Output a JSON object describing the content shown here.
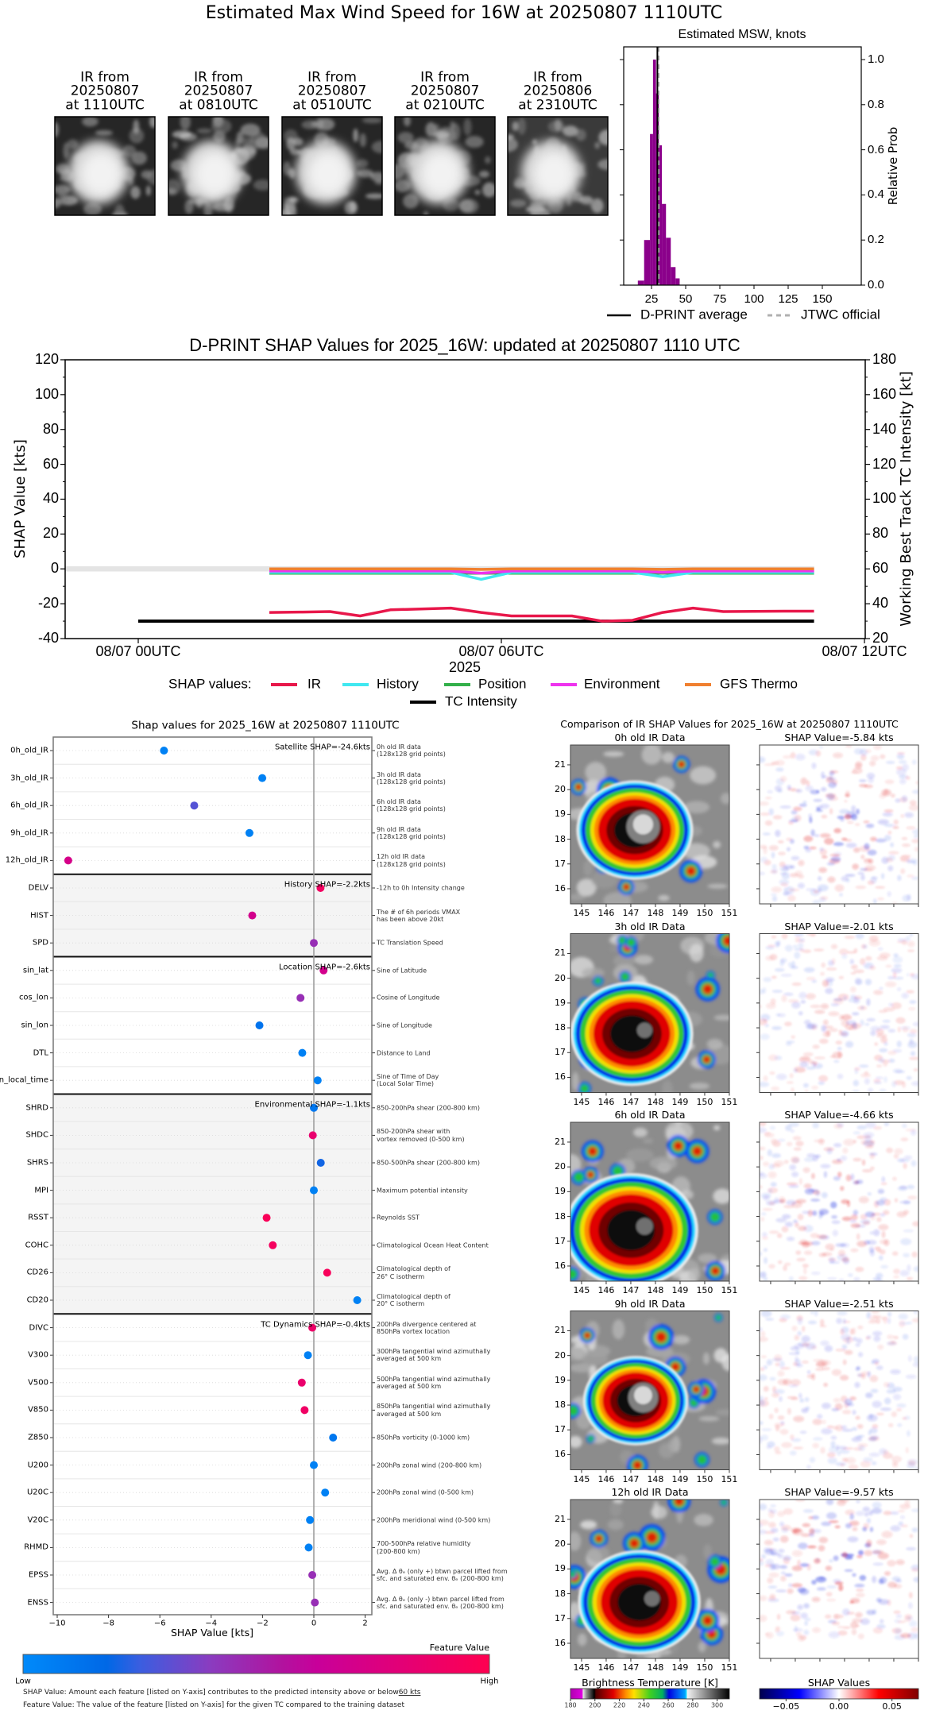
{
  "title": "Estimated Max Wind Speed for 16W at 20250807 1110UTC",
  "thumbnails": [
    {
      "line1": "IR from",
      "line2": "20250807",
      "line3": "at 1110UTC"
    },
    {
      "line1": "IR from",
      "line2": "20250807",
      "line3": "at 0810UTC"
    },
    {
      "line1": "IR from",
      "line2": "20250807",
      "line3": "at 0510UTC"
    },
    {
      "line1": "IR from",
      "line2": "20250807",
      "line3": "at 0210UTC"
    },
    {
      "line1": "IR from",
      "line2": "20250806",
      "line3": "at 2310UTC"
    }
  ],
  "chart_data": [
    {
      "type": "bar",
      "title": "Estimated MSW, knots",
      "xlabel": "",
      "ylabel": "Relative Prob",
      "xlim": [
        5,
        178
      ],
      "ylim": [
        0,
        1.05
      ],
      "xtick_labels": [
        "25",
        "50",
        "75",
        "100",
        "125",
        "150"
      ],
      "ytick_labels": [
        "0.0",
        "0.2",
        "0.4",
        "0.6",
        "0.8",
        "1.0"
      ],
      "bar_color": "#8b008b",
      "bins": [
        {
          "from": 15,
          "to": 19.6,
          "value": 0.02
        },
        {
          "from": 19.6,
          "to": 23.9,
          "value": 0.2
        },
        {
          "from": 23.9,
          "to": 26.1,
          "value": 0.67
        },
        {
          "from": 26.1,
          "to": 28.3,
          "value": 1.0
        },
        {
          "from": 28.3,
          "to": 30.4,
          "value": 0.85
        },
        {
          "from": 30.4,
          "to": 32.6,
          "value": 0.62
        },
        {
          "from": 32.6,
          "to": 35.6,
          "value": 0.36
        },
        {
          "from": 35.6,
          "to": 39.1,
          "value": 0.21
        },
        {
          "from": 39.1,
          "to": 42.6,
          "value": 0.08
        },
        {
          "from": 42.6,
          "to": 45.6,
          "value": 0.03
        }
      ],
      "dprint_average": 29.3,
      "jtwc_official": 30,
      "legend": {
        "dprint": "D-PRINT average",
        "jtwc": "JTWC official"
      },
      "legend_placement": "bottom"
    },
    {
      "type": "line",
      "title": "D-PRINT SHAP Values for 2025_16W: updated at 20250807 1110 UTC",
      "xlabel": "2025",
      "ylabel": "SHAP Value [kts]",
      "y2label": "Working Best Track TC Intensity [kt]",
      "ylim": [
        -40,
        120
      ],
      "y2lim": [
        20,
        180
      ],
      "ytick_labels": [
        "-40",
        "-20",
        "0",
        "20",
        "40",
        "60",
        "80",
        "100",
        "120"
      ],
      "y2tick_labels": [
        "20",
        "40",
        "60",
        "80",
        "100",
        "120",
        "140",
        "160",
        "180"
      ],
      "xlim": [
        "2025-08-06 22:48",
        "2025-08-07 12:00"
      ],
      "xticks": [
        {
          "label": "08/07 00UTC",
          "time": "2025-08-07 00:00"
        },
        {
          "label": "08/07 06UTC",
          "time": "2025-08-07 06:00"
        },
        {
          "label": "08/07 12UTC",
          "time": "2025-08-07 12:00"
        }
      ],
      "x": [
        "2025-08-07 02:10",
        "2025-08-07 02:40",
        "2025-08-07 03:10",
        "2025-08-07 03:40",
        "2025-08-07 04:10",
        "2025-08-07 04:40",
        "2025-08-07 05:10",
        "2025-08-07 05:40",
        "2025-08-07 06:10",
        "2025-08-07 06:40",
        "2025-08-07 07:10",
        "2025-08-07 07:40",
        "2025-08-07 08:10",
        "2025-08-07 08:40",
        "2025-08-07 09:10",
        "2025-08-07 09:40",
        "2025-08-07 10:10",
        "2025-08-07 10:40",
        "2025-08-07 11:10"
      ],
      "legend_title": "SHAP values:",
      "series": [
        {
          "name": "IR",
          "color": "#e8174a",
          "values": [
            -25,
            -24.8,
            -24.5,
            -27,
            -23.5,
            -23,
            -22.5,
            -25,
            -27,
            -27,
            -27,
            -30,
            -29.5,
            -25,
            -22.5,
            -24.5,
            -24.4,
            -24.3,
            -24.3
          ]
        },
        {
          "name": "History",
          "color": "#40e8f0",
          "values": [
            -2,
            -2,
            -2,
            -2,
            -2,
            -2,
            -2,
            -6,
            -2,
            -2,
            -2,
            -2,
            -2,
            -4.5,
            -2,
            -2,
            -2,
            -2,
            -2
          ]
        },
        {
          "name": "Position",
          "color": "#33b04a",
          "values": [
            -2.5,
            -2.5,
            -2.5,
            -2.5,
            -2.5,
            -2.5,
            -2.5,
            -2.5,
            -2.5,
            -2.5,
            -2.5,
            -2.5,
            -2.5,
            -2.5,
            -2.5,
            -2.5,
            -2.5,
            -2.5,
            -2.5
          ]
        },
        {
          "name": "Environment",
          "color": "#ee33ee",
          "values": [
            -1.2,
            -1.2,
            -1.2,
            -1.2,
            -1.2,
            -1.2,
            -1.2,
            -2.5,
            -1.2,
            -1.2,
            -1.2,
            -1.2,
            -1.2,
            -2,
            -1.2,
            -1.2,
            -1.2,
            -1.2,
            -1.2
          ]
        },
        {
          "name": "GFS Thermo",
          "color": "#f08030",
          "values": [
            0,
            0,
            0,
            0,
            0,
            0,
            0,
            -0.3,
            0,
            0,
            0,
            0,
            0,
            -0.3,
            0,
            0,
            0,
            0,
            0
          ]
        }
      ],
      "tc_intensity": {
        "name": "TC Intensity",
        "color": "#000000",
        "x": [
          "2025-08-07 00:00",
          "2025-08-07 11:10"
        ],
        "values_kt": [
          30,
          30
        ]
      }
    },
    {
      "type": "scatter",
      "title": "Shap values for 2025_16W at 20250807 1110UTC",
      "xlabel": "SHAP Value [kts]",
      "xlim": [
        -10.2,
        2.25
      ],
      "xtick_labels": [
        "−10",
        "−8",
        "−6",
        "−4",
        "−2",
        "0",
        "2"
      ],
      "groups": [
        {
          "label": "Satellite SHAP=-24.6kts",
          "shaded": false,
          "features": [
            {
              "name": "0h_old_IR",
              "desc": "0h old IR data\n(128x128 grid points)",
              "shap": -5.84,
              "feature_value": 0.05
            },
            {
              "name": "3h_old_IR",
              "desc": "3h old IR data\n(128x128 grid points)",
              "shap": -2.01,
              "feature_value": 0.05
            },
            {
              "name": "6h_old_IR",
              "desc": "6h old IR data\n(128x128 grid points)",
              "shap": -4.66,
              "feature_value": 0.3
            },
            {
              "name": "9h_old_IR",
              "desc": "9h old IR data\n(128x128 grid points)",
              "shap": -2.51,
              "feature_value": 0.05
            },
            {
              "name": "12h_old_IR",
              "desc": "12h old IR data\n(128x128 grid points)",
              "shap": -9.57,
              "feature_value": 0.72
            }
          ]
        },
        {
          "label": "History SHAP=-2.2kts",
          "shaded": true,
          "features": [
            {
              "name": "DELV",
              "desc": "-12h to 0h Intensity change",
              "shap": 0.26,
              "feature_value": 0.92
            },
            {
              "name": "HIST",
              "desc": "The # of 6h periods VMAX\nhas been above 20kt",
              "shap": -2.4,
              "feature_value": 0.7
            },
            {
              "name": "SPD",
              "desc": "TC Translation Speed",
              "shap": 0.0,
              "feature_value": 0.45
            }
          ]
        },
        {
          "label": "Location SHAP=-2.6kts",
          "shaded": false,
          "features": [
            {
              "name": "sin_lat",
              "desc": "Sine of Latitude",
              "shap": 0.38,
              "feature_value": 0.7
            },
            {
              "name": "cos_lon",
              "desc": "Cosine of Longitude",
              "shap": -0.52,
              "feature_value": 0.45
            },
            {
              "name": "sin_lon",
              "desc": "Sine of Longitude",
              "shap": -2.12,
              "feature_value": 0.12
            },
            {
              "name": "DTL",
              "desc": "Distance to Land",
              "shap": -0.45,
              "feature_value": 0.05
            },
            {
              "name": "sin_local_time",
              "desc": "Sine of Time of Day\n(Local Solar Time)",
              "shap": 0.15,
              "feature_value": 0.05
            }
          ]
        },
        {
          "label": "Environmental SHAP=-1.1kts",
          "shaded": true,
          "features": [
            {
              "name": "SHRD",
              "desc": "850-200hPa shear (200-800 km)",
              "shap": 0.0,
              "feature_value": 0.1
            },
            {
              "name": "SHDC",
              "desc": "850-200hPa shear with\nvortex removed (0-500 km)",
              "shap": -0.04,
              "feature_value": 0.85
            },
            {
              "name": "SHRS",
              "desc": "850-500hPa shear (200-800 km)",
              "shap": 0.27,
              "feature_value": 0.2
            },
            {
              "name": "MPI",
              "desc": "Maximum potential intensity",
              "shap": 0.0,
              "feature_value": 0.05
            },
            {
              "name": "RSST",
              "desc": "Reynolds SST",
              "shap": -1.84,
              "feature_value": 0.96
            },
            {
              "name": "COHC",
              "desc": "Climatological Ocean Heat Content",
              "shap": -1.6,
              "feature_value": 0.93
            },
            {
              "name": "CD26",
              "desc": "Climatological depth of\n26° C isotherm",
              "shap": 0.52,
              "feature_value": 0.95
            },
            {
              "name": "CD20",
              "desc": "Climatological depth of\n20° C isotherm",
              "shap": 1.69,
              "feature_value": 0.05
            }
          ]
        },
        {
          "label": "TC Dynamics SHAP=-0.4kts",
          "shaded": false,
          "features": [
            {
              "name": "DIVC",
              "desc": "200hPa divergence centered at\n850hPa vortex location",
              "shap": -0.06,
              "feature_value": 0.88
            },
            {
              "name": "V300",
              "desc": "300hPa tangential wind azimuthally\naveraged at 500 km",
              "shap": -0.23,
              "feature_value": 0.05
            },
            {
              "name": "V500",
              "desc": "500hPa tangential wind azimuthally\naveraged at 500 km",
              "shap": -0.47,
              "feature_value": 0.86
            },
            {
              "name": "V850",
              "desc": "850hPa tangential wind azimuthally\naveraged at 500 km",
              "shap": -0.36,
              "feature_value": 0.9
            },
            {
              "name": "Z850",
              "desc": "850hPa vorticity (0-1000 km)",
              "shap": 0.75,
              "feature_value": 0.1
            },
            {
              "name": "U200",
              "desc": "200hPa zonal wind (200-800 km)",
              "shap": 0.0,
              "feature_value": 0.05
            },
            {
              "name": "U20C",
              "desc": "200hPa zonal wind (0-500 km)",
              "shap": 0.44,
              "feature_value": 0.05
            },
            {
              "name": "V20C",
              "desc": "200hPa meridional wind (0-500 km)",
              "shap": -0.15,
              "feature_value": 0.05
            },
            {
              "name": "RHMD",
              "desc": "700-500hPa relative humidity\n(200-800 km)",
              "shap": -0.2,
              "feature_value": 0.05
            },
            {
              "name": "EPSS",
              "desc": "Avg. Δ θₑ (only +) btwn parcel lifted from\nsfc. and saturated env. θₑ (200-800 km)",
              "shap": -0.06,
              "feature_value": 0.45
            },
            {
              "name": "ENSS",
              "desc": "Avg. Δ θₑ (only -) btwn parcel lifted from\nsfc. and saturated env. θₑ (200-800 km)",
              "shap": 0.04,
              "feature_value": 0.45
            }
          ]
        }
      ],
      "colorbar": {
        "label": "Feature Value",
        "low": "Low",
        "high": "High",
        "low_color": "#008afa",
        "high_color": "#ff0050"
      },
      "notes": {
        "shap_prefix": "SHAP Value: Amount each feature [listed on Y-axis] contributes to the predicted intensity above or below ",
        "shap_threshold": "60 kts",
        "feature": "Feature Value: The value of the feature [listed on Y-axis] for the given TC compared to the training dataset"
      }
    }
  ],
  "ir_comparison": {
    "title": "Comparison of IR SHAP Values for 2025_16W at 20250807 1110UTC",
    "panels": [
      {
        "ir_title": "0h old IR Data",
        "shap_title": "SHAP Value=-5.84 kts",
        "shap": -5.84
      },
      {
        "ir_title": "3h old IR Data",
        "shap_title": "SHAP Value=-2.01 kts",
        "shap": -2.01
      },
      {
        "ir_title": "6h old IR Data",
        "shap_title": "SHAP Value=-4.66 kts",
        "shap": -4.66
      },
      {
        "ir_title": "9h old IR Data",
        "shap_title": "SHAP Value=-2.51 kts",
        "shap": -2.51
      },
      {
        "ir_title": "12h old IR Data",
        "shap_title": "SHAP Value=-9.57 kts",
        "shap": -9.57
      }
    ],
    "lat_ticks": [
      "16",
      "17",
      "18",
      "19",
      "20",
      "21"
    ],
    "lon_ticks": [
      "145",
      "146",
      "147",
      "148",
      "149",
      "150",
      "151"
    ],
    "ir_colorbar": {
      "label": "Brightness Temperature [K]",
      "range": [
        180,
        310
      ],
      "ticks": [
        "180",
        "200",
        "220",
        "240",
        "260",
        "280",
        "300"
      ]
    },
    "shap_colorbar": {
      "label": "SHAP Values",
      "range": [
        -0.075,
        0.075
      ],
      "ticks": [
        "−0.05",
        "0.00",
        "0.05"
      ]
    }
  }
}
